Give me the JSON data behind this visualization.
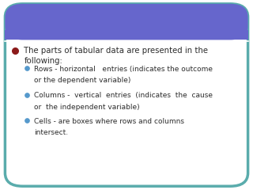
{
  "bg_color": "#ffffff",
  "header_color": "#6666cc",
  "border_color": "#5aacac",
  "text_color": "#2c2c2c",
  "bullet1_color": "#8b1a1a",
  "bullet2_color": "#5599cc",
  "main_line1": "The parts of tabular data are presented in the",
  "main_line2": "following:",
  "sub_bullets": [
    [
      "Rows - horizontal   entries (indicates the outcome",
      "or the dependent variable)"
    ],
    [
      "Columns -  vertical  entries  (indicates  the  cause",
      "or  the independent variable)"
    ],
    [
      "Cells - are boxes where rows and columns",
      "intersect."
    ]
  ]
}
